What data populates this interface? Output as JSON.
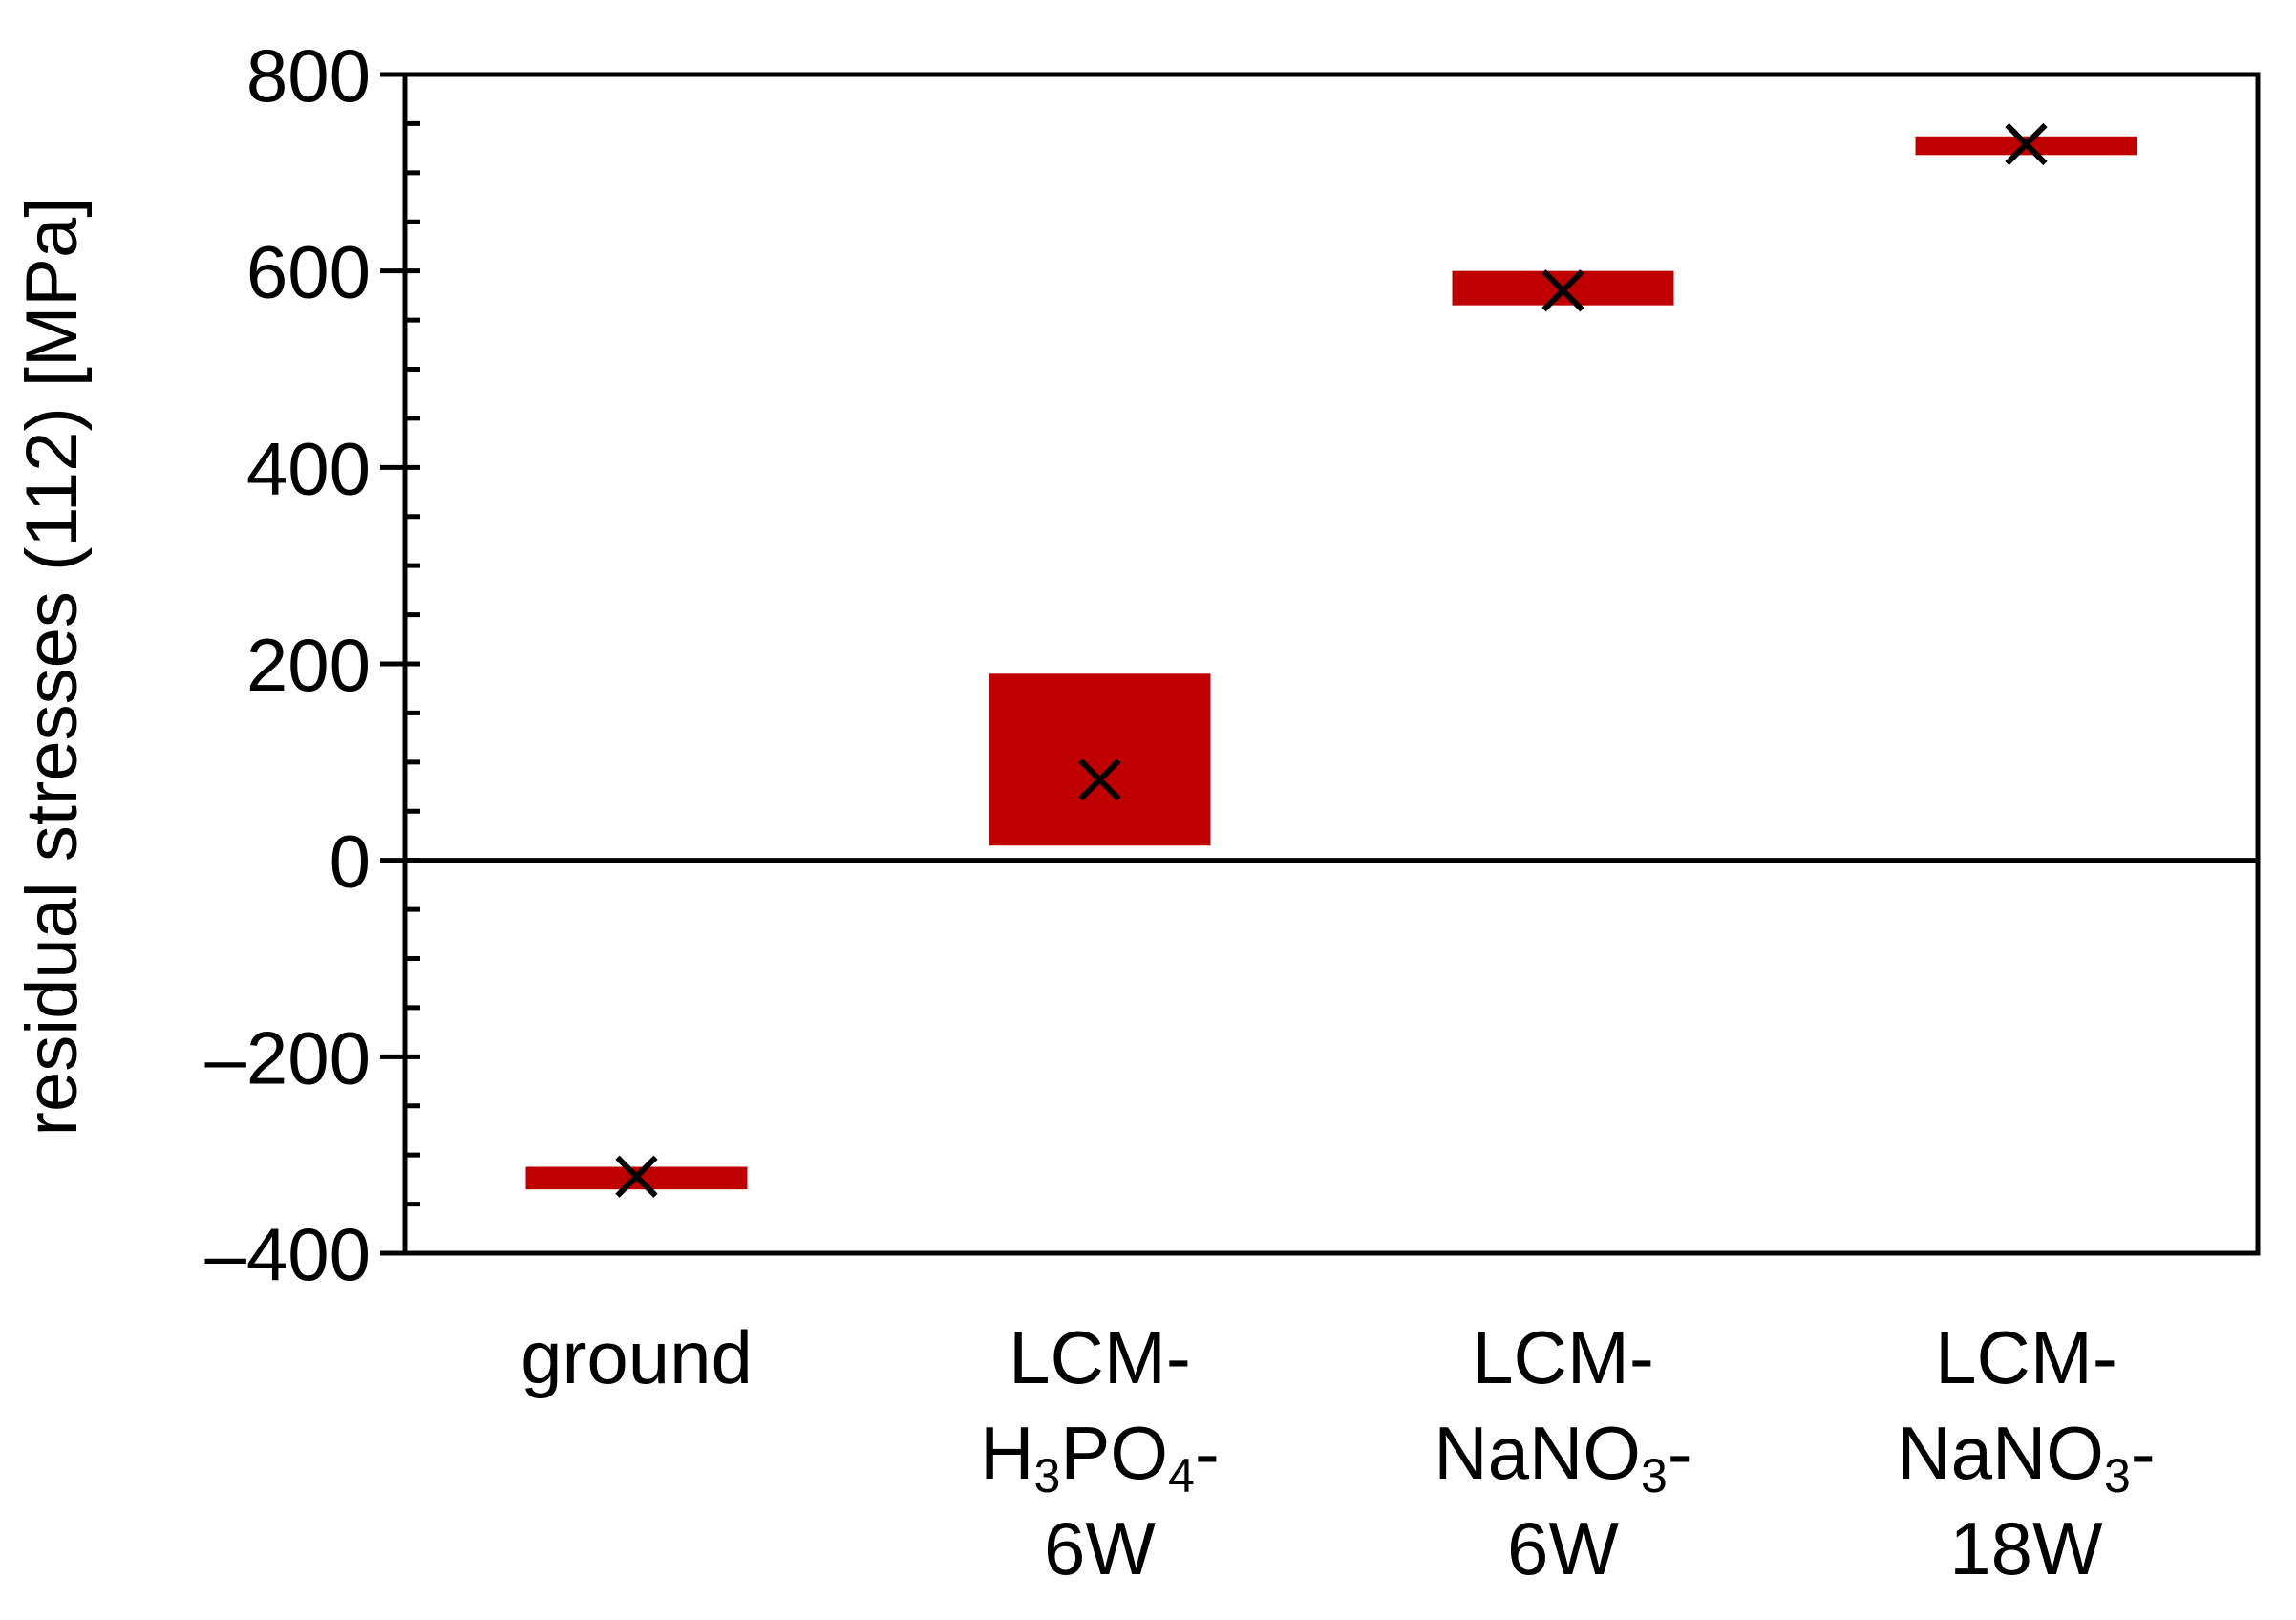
{
  "chart_data": {
    "type": "box",
    "categories": [
      {
        "id": "ground",
        "lines": [
          "ground"
        ]
      },
      {
        "id": "lcm-h3po4-6w",
        "lines": [
          "LCM-",
          "H|3|PO|4|-",
          "6W"
        ]
      },
      {
        "id": "lcm-nano3-6w",
        "lines": [
          "LCM-",
          "NaNO|3|-",
          "6W"
        ]
      },
      {
        "id": "lcm-nano3-18w",
        "lines": [
          "LCM-",
          "NaNO|3|-",
          "18W"
        ]
      }
    ],
    "boxes": [
      {
        "low": -335,
        "high": -312,
        "mean": -322
      },
      {
        "low": 15,
        "high": 190,
        "mean": 82
      },
      {
        "low": 565,
        "high": 600,
        "mean": 580
      },
      {
        "low": 718,
        "high": 737,
        "mean": 729
      }
    ],
    "ylabel": "residual stresses (112) [MPa]",
    "ylim": [
      -400,
      800
    ],
    "yticks": [
      -400,
      -200,
      0,
      200,
      400,
      600,
      800
    ],
    "ytick_labels": [
      "–400",
      "–200",
      "0",
      "200",
      "400",
      "600",
      "800"
    ],
    "minor_tick_step": 50,
    "zero_line": true,
    "box_color": "#c00000",
    "marker": "x",
    "marker_color": "#000000"
  }
}
